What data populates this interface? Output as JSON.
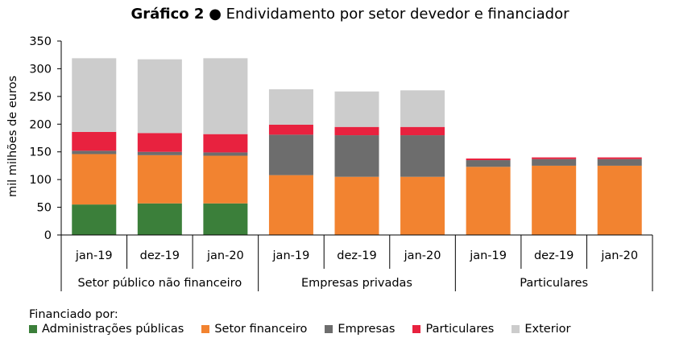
{
  "title": {
    "bold": "Gráfico 2",
    "bullet": "●",
    "rest": "Endividamento por setor devedor e financiador"
  },
  "chart_data": {
    "type": "bar",
    "stacked": true,
    "ylabel": "mil milhões de euros",
    "ylim": [
      0,
      350
    ],
    "yticks": [
      0,
      50,
      100,
      150,
      200,
      250,
      300,
      350
    ],
    "categories": [
      "jan-19",
      "dez-19",
      "jan-20",
      "jan-19",
      "dez-19",
      "jan-20",
      "jan-19",
      "dez-19",
      "jan-20"
    ],
    "groups": [
      {
        "label": "Setor público não financeiro",
        "span": 3
      },
      {
        "label": "Empresas privadas",
        "span": 3
      },
      {
        "label": "Particulares",
        "span": 3
      }
    ],
    "series": [
      {
        "name": "Administrações públicas",
        "color": "#3b7f3a",
        "values": [
          55,
          57,
          57,
          0,
          0,
          0,
          0,
          0,
          0
        ]
      },
      {
        "name": "Setor financeiro",
        "color": "#f28330",
        "values": [
          91,
          87,
          86,
          108,
          105,
          105,
          123,
          125,
          125
        ]
      },
      {
        "name": "Empresas",
        "color": "#6d6d6d",
        "values": [
          6,
          6,
          6,
          73,
          75,
          75,
          12,
          12,
          12
        ]
      },
      {
        "name": "Particulares",
        "color": "#e8223f",
        "values": [
          34,
          34,
          33,
          18,
          15,
          15,
          3,
          3,
          3
        ]
      },
      {
        "name": "Exterior",
        "color": "#cccccc",
        "values": [
          133,
          133,
          137,
          64,
          64,
          66,
          0,
          0,
          0
        ]
      }
    ],
    "grid": false,
    "legend_position": "bottom"
  },
  "legend": {
    "heading": "Financiado por:"
  }
}
